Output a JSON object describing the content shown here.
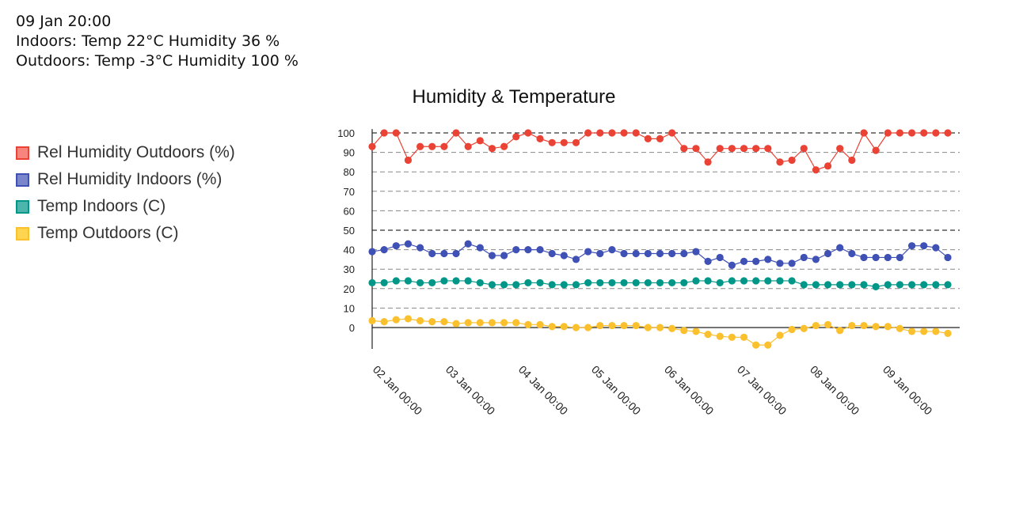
{
  "status": {
    "datetime": "09 Jan 20:00",
    "indoors": "Indoors: Temp 22°C Humidity 36 %",
    "outdoors": "Outdoors: Temp -3°C Humidity 100 %"
  },
  "chart_data": {
    "type": "line",
    "title": "Humidity & Temperature",
    "xlabel": "",
    "ylabel": "",
    "ylim": [
      -11,
      102
    ],
    "yticks": [
      0,
      10,
      20,
      30,
      40,
      50,
      60,
      70,
      80,
      90,
      100
    ],
    "emphasized_gridlines": [
      50,
      100
    ],
    "x_range_days": [
      0,
      7.9
    ],
    "x_tick_labels": [
      "02 Jan 00:00",
      "03 Jan 00:00",
      "04 Jan 00:00",
      "05 Jan 00:00",
      "06 Jan 00:00",
      "07 Jan 00:00",
      "08 Jan 00:00",
      "09 Jan 00:00"
    ],
    "grid": true,
    "legend_position": "left",
    "series": [
      {
        "name": "Rel Humidity Outdoors (%)",
        "color": "#ea4335",
        "swatch_fill": "#f8857d",
        "values": [
          93,
          100,
          100,
          86,
          93,
          93,
          93,
          100,
          93,
          96,
          92,
          93,
          98,
          100,
          97,
          95,
          95,
          95,
          100,
          100,
          100,
          100,
          100,
          97,
          97,
          100,
          92,
          92,
          85,
          92,
          92,
          92,
          92,
          92,
          85,
          86,
          92,
          81,
          83,
          92,
          86,
          100,
          91,
          100,
          100,
          100,
          100,
          100,
          100
        ]
      },
      {
        "name": "Rel Humidity Indoors (%)",
        "color": "#3f51b5",
        "swatch_fill": "#7986cb",
        "values": [
          39,
          40,
          42,
          43,
          41,
          38,
          38,
          38,
          43,
          41,
          37,
          37,
          40,
          40,
          40,
          38,
          37,
          35,
          39,
          38,
          40,
          38,
          38,
          38,
          38,
          38,
          38,
          39,
          34,
          36,
          32,
          34,
          34,
          35,
          33,
          33,
          36,
          35,
          38,
          41,
          38,
          36,
          36,
          36,
          36,
          42,
          42,
          41,
          36
        ]
      },
      {
        "name": "Temp Indoors (C)",
        "color": "#009688",
        "swatch_fill": "#4db6ac",
        "values": [
          23,
          23,
          24,
          24,
          23,
          23,
          24,
          24,
          24,
          23,
          22,
          22,
          22,
          23,
          23,
          22,
          22,
          22,
          23,
          23,
          23,
          23,
          23,
          23,
          23,
          23,
          23,
          24,
          24,
          23,
          24,
          24,
          24,
          24,
          24,
          24,
          22,
          22,
          22,
          22,
          22,
          22,
          21,
          22,
          22,
          22,
          22,
          22,
          22
        ]
      },
      {
        "name": "Temp Outdoors (C)",
        "color": "#fbc02d",
        "swatch_fill": "#ffd54f",
        "values": [
          3.5,
          3,
          4,
          4.5,
          3.5,
          3,
          3,
          2,
          2.5,
          2.5,
          2.5,
          2.5,
          2.5,
          1.5,
          1.5,
          0.5,
          0.5,
          0,
          0,
          1,
          1,
          1,
          1,
          0,
          0,
          -0.5,
          -1.5,
          -2,
          -3.5,
          -4.5,
          -5,
          -5,
          -9,
          -9,
          -4,
          -1,
          -0.5,
          1,
          1.5,
          -1.5,
          1,
          1,
          0.5,
          0.5,
          -0.5,
          -2,
          -2,
          -2,
          -3
        ]
      }
    ]
  }
}
